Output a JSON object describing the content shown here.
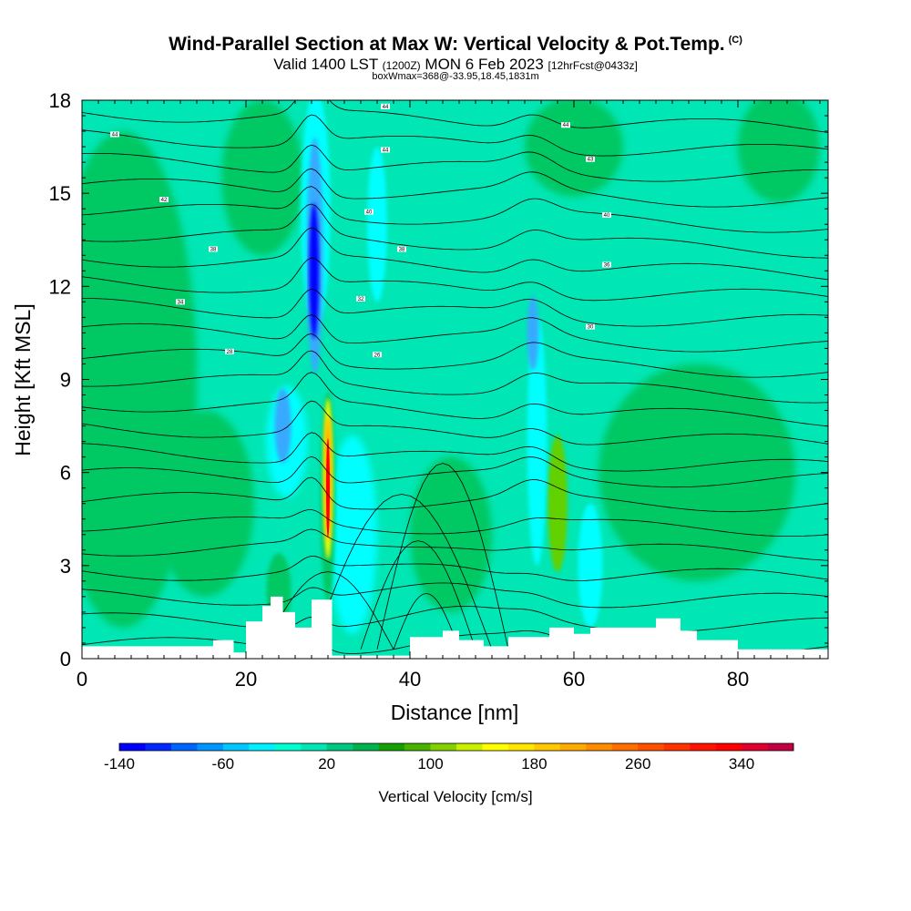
{
  "header": {
    "title": "Wind-Parallel Section at Max W: Vertical Velocity & Pot.Temp.",
    "copyright": "(C)",
    "valid_prefix": "Valid 1400 LST",
    "valid_utc": "(1200Z)",
    "valid_date": "MON 6 Feb 2023",
    "forecast": "[12hrFcst@0433z]",
    "box_info": "boxWmax=368@-33.95,18.45,1831m"
  },
  "colors": {
    "strong_down": "#0000ff",
    "mid_down": "#38a9ff",
    "weak_down": "#00ffff",
    "background": "#00e6b4",
    "weak_up": "#00c864",
    "mid_up": "#64d000",
    "strong_up_yellow": "#ffff00",
    "strong_up_orange": "#ffa500",
    "strong_up_red": "#ff0000",
    "terrain": "#ffffff",
    "contour": "#000000"
  },
  "chart_data": {
    "type": "heatmap",
    "title": "Wind-Parallel Section at Max W: Vertical Velocity & Pot.Temp.",
    "xlabel": "Distance [nm]",
    "ylabel": "Height [Kft MSL]",
    "xlim": [
      0,
      91
    ],
    "ylim": [
      0,
      18
    ],
    "x_ticks": [
      0,
      20,
      40,
      60,
      80
    ],
    "y_ticks": [
      0,
      3,
      6,
      9,
      12,
      15,
      18
    ],
    "colorbar": {
      "title": "Vertical Velocity [cm/s]",
      "min": -140,
      "max": 380,
      "step": 20,
      "tick_labels": [
        "-140",
        "-60",
        "20",
        "100",
        "180",
        "260",
        "340"
      ],
      "colors": [
        "#0000ff",
        "#0028ff",
        "#0064ff",
        "#0096ff",
        "#00c8ff",
        "#00f0ff",
        "#00ffd0",
        "#00e6b4",
        "#00c882",
        "#00b44b",
        "#14a000",
        "#46b400",
        "#82d200",
        "#c8f000",
        "#ffff00",
        "#ffe600",
        "#ffc800",
        "#ffaa00",
        "#ff8c00",
        "#ff6e00",
        "#ff5000",
        "#ff3200",
        "#ff1400",
        "#ff0000",
        "#e00030",
        "#c00040"
      ]
    },
    "potential_temperature_isentropes": {
      "units": "theta",
      "labels": [
        "44",
        "44",
        "44",
        "44",
        "43",
        "42",
        "40",
        "40",
        "38",
        "38",
        "36",
        "34",
        "32",
        "30",
        "28",
        "26"
      ]
    },
    "max_updraft": {
      "value_cm_s": 368,
      "distance_nm": 30,
      "height_kft": 6.0
    },
    "terrain_profile": {
      "x_nm": [
        0,
        16,
        16,
        18.5,
        18.5,
        20,
        20,
        22,
        22,
        23,
        23,
        24.5,
        24.5,
        26,
        26,
        28,
        28,
        30.5,
        30.5,
        40,
        40,
        44,
        44,
        46,
        46,
        49,
        49,
        52,
        52,
        57,
        57,
        60,
        60,
        62,
        62,
        70,
        70,
        73,
        73,
        75,
        75,
        80,
        80,
        91
      ],
      "height_kft": [
        0.4,
        0.4,
        0.6,
        0.6,
        0.2,
        0.2,
        1.2,
        1.2,
        1.7,
        1.7,
        2.0,
        2.0,
        1.5,
        1.5,
        1.0,
        1.0,
        1.9,
        1.9,
        0.1,
        0.1,
        0.7,
        0.7,
        0.9,
        0.9,
        0.6,
        0.6,
        0.4,
        0.4,
        0.7,
        0.7,
        1.0,
        1.0,
        0.8,
        0.8,
        1.0,
        1.0,
        1.3,
        1.3,
        0.9,
        0.9,
        0.6,
        0.6,
        0.3,
        0.3
      ]
    }
  }
}
